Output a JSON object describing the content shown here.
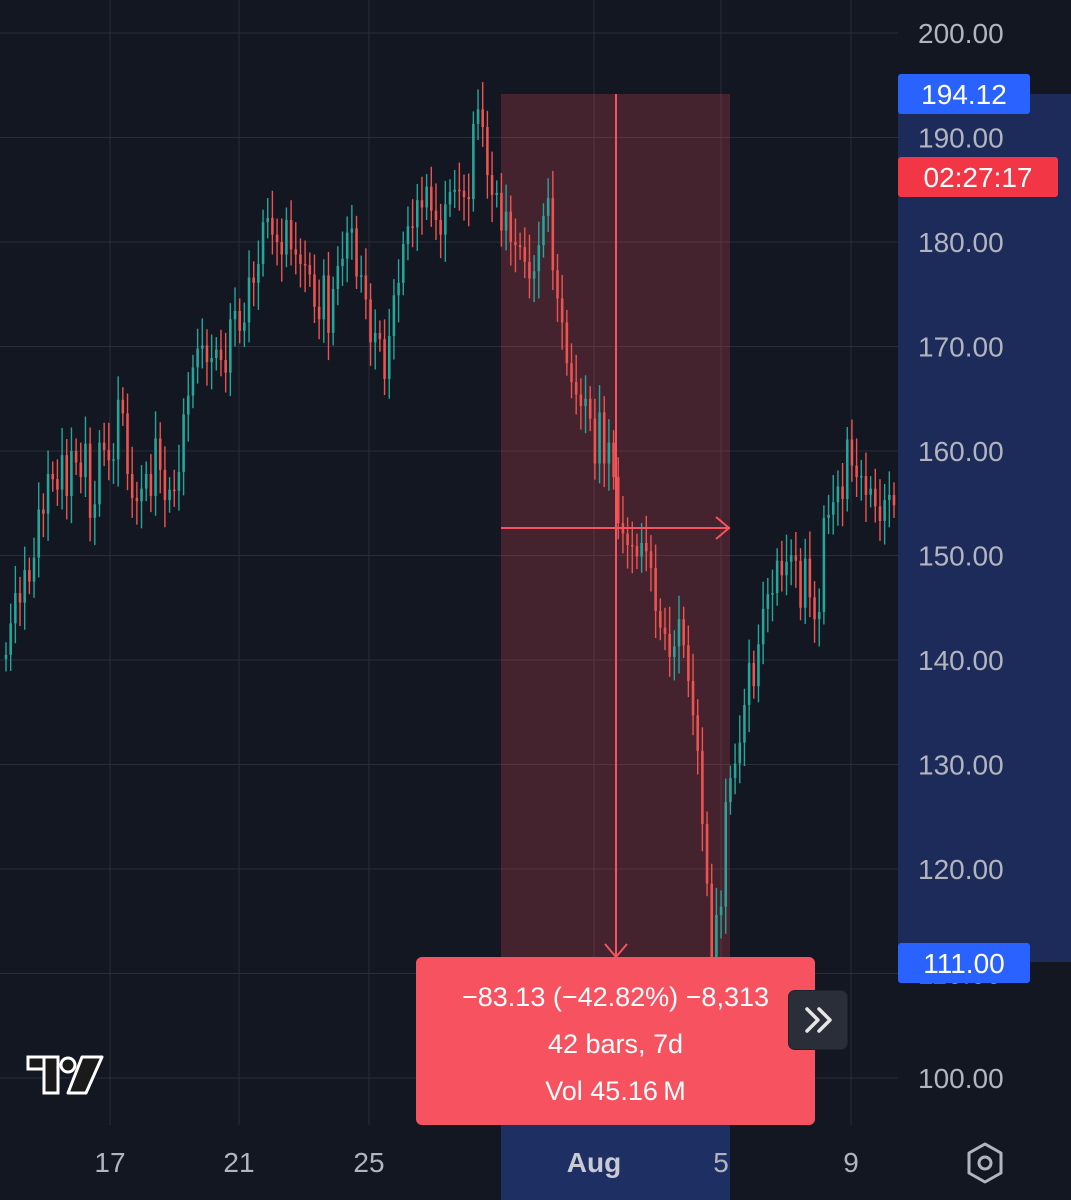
{
  "colors": {
    "background": "#131722",
    "grid": "#2a2e39",
    "up": "#26a69a",
    "down": "#ef5350",
    "price_scale_highlight": "#1e2f63",
    "measure_fill": "#f7525f",
    "badge_blue": "#2962ff",
    "badge_red": "#f23645"
  },
  "chart_data": {
    "type": "candlestick",
    "x_ticks": [
      "17",
      "21",
      "25",
      "Aug",
      "5",
      "9"
    ],
    "y_ticks": [
      "200.00",
      "190.00",
      "180.00",
      "170.00",
      "160.00",
      "150.00",
      "140.00",
      "130.00",
      "120.00",
      "110.00",
      "100.00"
    ],
    "ylim": [
      96,
      203
    ],
    "grid": true,
    "price_scale_side": "right",
    "closes": [
      140.5,
      143.5,
      146.4,
      145.5,
      148.6,
      147.5,
      149.8,
      154.4,
      154.0,
      157.8,
      157.3,
      156.3,
      159.6,
      155.7,
      160.0,
      158.9,
      157.5,
      160.7,
      153.6,
      154.9,
      160.8,
      160.1,
      159.1,
      159.2,
      164.9,
      163.6,
      157.8,
      155.5,
      155.2,
      156.4,
      157.8,
      155.7,
      161.2,
      158.2,
      155.3,
      156.3,
      156.2,
      158.0,
      163.5,
      165.3,
      168.0,
      169.8,
      170.1,
      168.5,
      168.9,
      169.7,
      168.7,
      167.5,
      172.6,
      173.4,
      171.5,
      172.3,
      176.6,
      176.1,
      177.9,
      181.9,
      182.3,
      180.7,
      180.0,
      178.8,
      182.1,
      179.3,
      178.8,
      177.9,
      177.8,
      176.9,
      173.8,
      172.6,
      176.8,
      171.3,
      175.5,
      177.7,
      178.4,
      180.9,
      181.3,
      176.7,
      176.8,
      174.5,
      170.4,
      171.3,
      170.7,
      166.9,
      171.0,
      174.9,
      176.1,
      179.8,
      181.5,
      181.4,
      184.0,
      183.3,
      185.3,
      183.0,
      182.1,
      180.7,
      183.6,
      184.8,
      185.0,
      184.9,
      184.3,
      184.1,
      191.3,
      192.7,
      191.0,
      186.4,
      184.5,
      184.7,
      181.1,
      182.9,
      180.0,
      179.7,
      179.5,
      178.1,
      176.5,
      177.2,
      179.7,
      182.5,
      184.2,
      177.3,
      174.6,
      172.3,
      168.4,
      166.6,
      165.4,
      164.3,
      165.0,
      163.1,
      158.8,
      163.7,
      158.8,
      160.8,
      157.5,
      153.1,
      152.1,
      151.0,
      150.9,
      149.9,
      151.2,
      150.4,
      148.8,
      144.7,
      143.1,
      142.5,
      140.3,
      141.3,
      143.9,
      141.4,
      138.0,
      134.7,
      131.3,
      124.3,
      118.6,
      111.3,
      115.6,
      116.4,
      126.4,
      128.7,
      130.1,
      132.1,
      135.7,
      139.7,
      137.5,
      141.5,
      144.9,
      146.3,
      146.4,
      149.5,
      148.1,
      149.4,
      150.0,
      149.5,
      145.0,
      149.7,
      146.0,
      143.9,
      144.6,
      153.6,
      153.9,
      155.1,
      156.6,
      155.4,
      161.1,
      158.6,
      157.5,
      157.6,
      155.8,
      156.4,
      154.7,
      153.3,
      155.3,
      155.8,
      154.8
    ]
  },
  "price_scale": {
    "high_badge": "194.12",
    "timer_badge": "02:27:17",
    "low_badge": "111.00"
  },
  "measure": {
    "line1": "−83.13 (−42.82%) −8,313",
    "line2": "42 bars, 7d",
    "line3": "Vol 45.16 M"
  },
  "icons": {
    "expand": "chevron-double-right-icon",
    "logo": "tradingview-logo-icon",
    "settings": "hexagon-settings-icon"
  }
}
